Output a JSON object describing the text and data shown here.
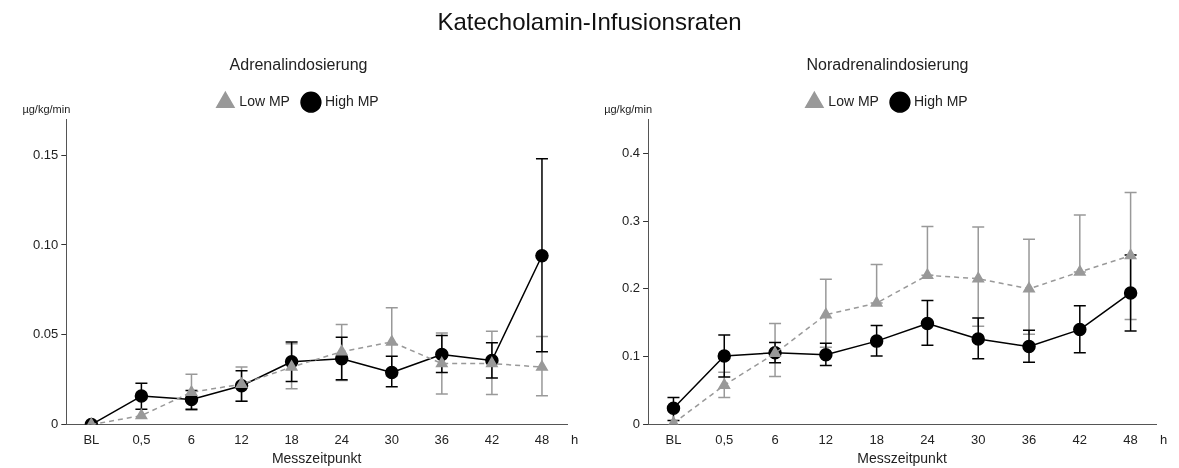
{
  "chart_data": [
    {
      "type": "line",
      "title": "Adrenalindosierung",
      "xlabel": "Messzeitpunkt",
      "ylabel": "µg/kg/min",
      "annotations": [
        "Katecholamin-Infusionsraten",
        "h"
      ],
      "categories": [
        "BL",
        "0,5",
        "6",
        "12",
        "18",
        "24",
        "30",
        "36",
        "42",
        "48"
      ],
      "ylim": [
        0,
        0.17
      ],
      "yticks": [
        0,
        0.05,
        {
          "value": 0.1,
          "label": "0.10"
        },
        0.15
      ],
      "grid": false,
      "legend": "top",
      "series": [
        {
          "name": "Low MP",
          "color": "#999999",
          "marker": "triangle",
          "line_style": "dashed",
          "values": [
            0,
            0.005,
            0.018,
            0.0225,
            0.032,
            0.0406,
            0.046,
            0.034,
            0.034,
            0.032
          ],
          "errors": [
            null,
            null,
            [
              0.008,
              0.028
            ],
            [
              0.013,
              0.032
            ],
            [
              0.02,
              0.045
            ],
            [
              0.0245,
              0.0557
            ],
            [
              0.027,
              0.065
            ],
            [
              0.017,
              0.051
            ],
            [
              0.0167,
              0.052
            ],
            [
              0.016,
              0.049
            ]
          ]
        },
        {
          "name": "High MP",
          "color": "#000000",
          "marker": "circle",
          "line_style": "solid",
          "values": [
            0,
            0.0159,
            0.014,
            0.0216,
            0.035,
            0.0367,
            0.029,
            0.039,
            0.0357,
            0.094
          ],
          "errors": [
            null,
            [
              0.0086,
              0.023
            ],
            [
              0.0086,
              0.019
            ],
            [
              0.013,
              0.03
            ],
            [
              0.024,
              0.046
            ],
            [
              0.0249,
              0.0486
            ],
            [
              0.021,
              0.038
            ],
            [
              0.029,
              0.0496
            ],
            [
              0.0259,
              0.0455
            ],
            [
              0.0406,
              0.148
            ]
          ]
        }
      ]
    },
    {
      "type": "line",
      "title": "Noradrenalindosierung",
      "xlabel": "Messzeitpunkt",
      "ylabel": "µg/kg/min",
      "annotations": [
        "h"
      ],
      "categories": [
        "BL",
        "0,5",
        "6",
        "12",
        "18",
        "24",
        "30",
        "36",
        "42",
        "48"
      ],
      "ylim": [
        0,
        0.45
      ],
      "yticks": [
        0,
        0.1,
        0.2,
        0.3,
        0.4
      ],
      "grid": false,
      "legend": "top",
      "series": [
        {
          "name": "Low MP",
          "color": "#999999",
          "marker": "triangle",
          "line_style": "dashed",
          "values": [
            0.002,
            0.058,
            0.105,
            0.162,
            0.179,
            0.22,
            0.215,
            0.2,
            0.225,
            0.249
          ],
          "errors": [
            null,
            [
              0.04,
              0.077
            ],
            [
              0.071,
              0.149
            ],
            [
              0.114,
              0.214
            ],
            [
              0.179,
              0.236
            ],
            [
              0.22,
              0.292
            ],
            [
              0.145,
              0.291
            ],
            [
              0.133,
              0.273
            ],
            [
              0.225,
              0.309
            ],
            [
              0.155,
              0.342
            ]
          ]
        },
        {
          "name": "High MP",
          "color": "#000000",
          "marker": "circle",
          "line_style": "solid",
          "values": [
            0.024,
            0.101,
            0.106,
            0.103,
            0.123,
            0.149,
            0.126,
            0.115,
            0.14,
            0.194
          ],
          "errors": [
            [
              0.006,
              0.04
            ],
            [
              0.07,
              0.132
            ],
            [
              0.091,
              0.121
            ],
            [
              0.087,
              0.12
            ],
            [
              0.101,
              0.146
            ],
            [
              0.117,
              0.183
            ],
            [
              0.097,
              0.157
            ],
            [
              0.092,
              0.139
            ],
            [
              0.106,
              0.175
            ],
            [
              0.138,
              0.25
            ]
          ]
        }
      ]
    }
  ]
}
